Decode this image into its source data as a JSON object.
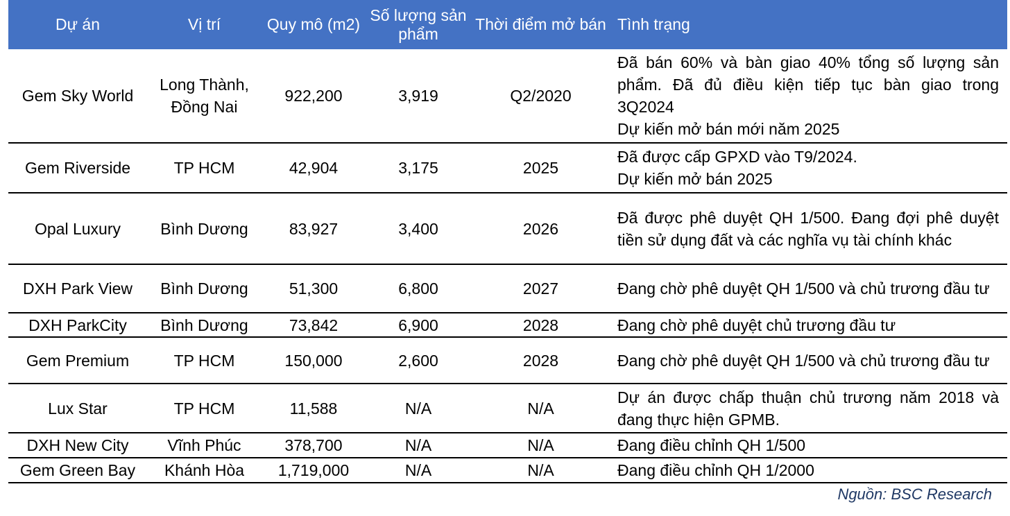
{
  "headers": {
    "project": "Dự án",
    "location": "Vị trí",
    "scale": "Quy mô (m2)",
    "units": "Số lượng sản phẩm",
    "launch": "Thời điểm mở bán",
    "status": "Tình trạng"
  },
  "rows": [
    {
      "project": "Gem Sky World",
      "location": "Long Thành, Đồng Nai",
      "scale": "922,200",
      "units": "3,919",
      "launch": "Q2/2020",
      "status": [
        "Đã bán 60% và bàn giao 40% tổng số lượng sản phẩm. Đã đủ điều kiện tiếp tục bàn giao trong 3Q2024",
        "Dự kiến mở bán mới năm 2025"
      ]
    },
    {
      "project": "Gem Riverside",
      "location": "TP HCM",
      "scale": "42,904",
      "units": "3,175",
      "launch": "2025",
      "status": [
        "Đã được cấp GPXD vào T9/2024.",
        "Dự kiến mở bán 2025"
      ]
    },
    {
      "project": "Opal Luxury",
      "location": "Bình Dương",
      "scale": "83,927",
      "units": "3,400",
      "launch": "2026",
      "status": [
        "Đã được phê duyệt QH 1/500. Đang đợi phê duyệt tiền sử dụng đất và các nghĩa vụ tài chính khác"
      ]
    },
    {
      "project": "DXH Park View",
      "location": "Bình Dương",
      "scale": "51,300",
      "units": "6,800",
      "launch": "2027",
      "status": [
        "Đang chờ phê duyệt QH 1/500 và chủ trương đầu tư"
      ]
    },
    {
      "project": "DXH ParkCity",
      "location": "Bình Dương",
      "scale": "73,842",
      "units": "6,900",
      "launch": "2028",
      "status": [
        "Đang chờ phê duyệt chủ trương đầu tư"
      ]
    },
    {
      "project": "Gem Premium",
      "location": "TP HCM",
      "scale": "150,000",
      "units": "2,600",
      "launch": "2028",
      "status": [
        "Đang chờ phê duyệt QH 1/500 và chủ trương đầu tư"
      ]
    },
    {
      "project": "Lux Star",
      "location": "TP HCM",
      "scale": "11,588",
      "units": "N/A",
      "launch": "N/A",
      "status": [
        "Dự án được chấp thuận chủ trương năm 2018 và đang thực hiện GPMB."
      ]
    },
    {
      "project": "DXH New City",
      "location": "Vĩnh Phúc",
      "scale": "378,700",
      "units": "N/A",
      "launch": "N/A",
      "status": [
        "Đang điều chỉnh QH 1/500"
      ]
    },
    {
      "project": "Gem Green Bay",
      "location": "Khánh Hòa",
      "scale": "1,719,000",
      "units": "N/A",
      "launch": "N/A",
      "status": [
        "Đang điều chỉnh QH 1/2000"
      ]
    }
  ],
  "source": "Nguồn: BSC Research"
}
